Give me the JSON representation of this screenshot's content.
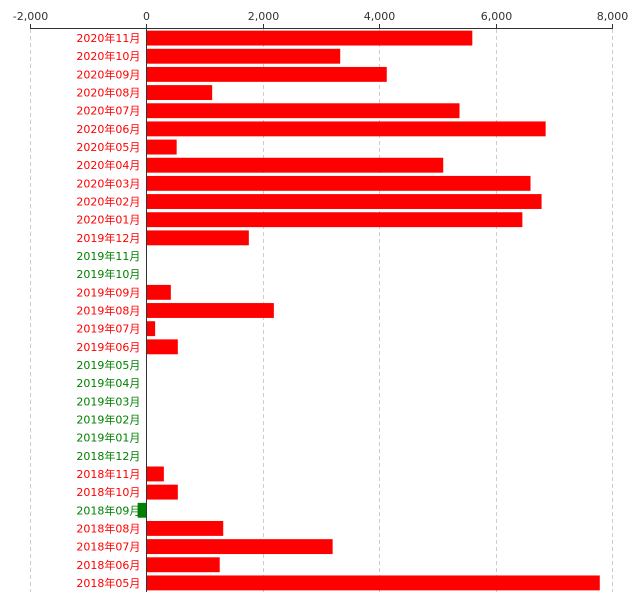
{
  "colors": {
    "positive": "#ff0000",
    "negative": "#008000",
    "grid": "#cccccc",
    "axis": "#333333",
    "tick_text": "#333333"
  },
  "chart_data": {
    "type": "bar",
    "orientation": "horizontal",
    "title": "",
    "xlabel": "",
    "ylabel": "",
    "xlim": [
      -2000,
      8000
    ],
    "x_ticks": [
      "-2,000",
      "0",
      "2,000",
      "4,000",
      "6,000",
      "8,000"
    ],
    "x_tick_values": [
      -2000,
      0,
      2000,
      4000,
      6000,
      8000
    ],
    "grid": "vertical dashed",
    "legend": "none",
    "categories": [
      "2020年11月",
      "2020年10月",
      "2020年09月",
      "2020年08月",
      "2020年07月",
      "2020年06月",
      "2020年05月",
      "2020年04月",
      "2020年03月",
      "2020年02月",
      "2020年01月",
      "2019年12月",
      "2019年11月",
      "2019年10月",
      "2019年09月",
      "2019年08月",
      "2019年07月",
      "2019年06月",
      "2019年05月",
      "2019年04月",
      "2019年03月",
      "2019年02月",
      "2019年01月",
      "2018年12月",
      "2018年11月",
      "2018年10月",
      "2018年09月",
      "2018年08月",
      "2018年07月",
      "2018年06月",
      "2018年05月"
    ],
    "values": [
      5600,
      3330,
      4130,
      1130,
      5380,
      6860,
      520,
      5100,
      6600,
      6790,
      6460,
      1760,
      0,
      0,
      420,
      2190,
      150,
      540,
      0,
      0,
      0,
      0,
      0,
      0,
      300,
      540,
      -150,
      1320,
      3200,
      1260,
      7790
    ]
  }
}
